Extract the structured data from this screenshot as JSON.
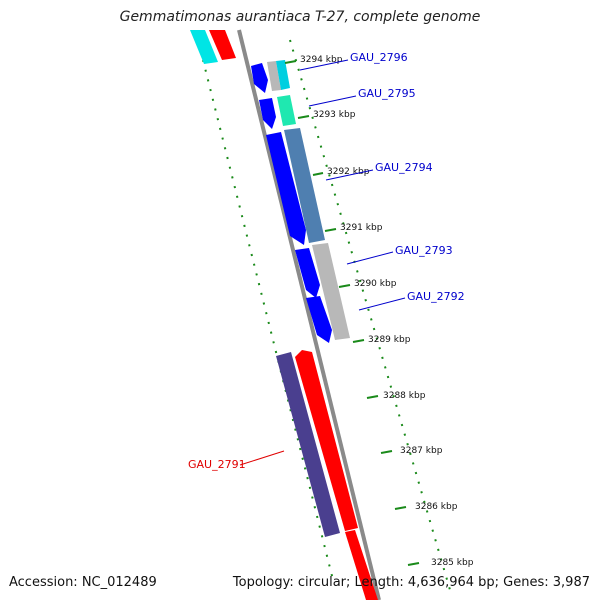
{
  "title": "Gemmatimonas aurantiaca T-27, complete genome",
  "footer": {
    "accession": "Accession: NC_012489",
    "summary": "Topology: circular; Length: 4,636,964 bp; Genes: 3,987"
  },
  "colors": {
    "backbone": "#8a8a8a",
    "tick": "#1a8a1a",
    "dot": "#1a8a1a",
    "forward_cds": "#0000ff",
    "label_blue": "#0000cc",
    "label_red": "#e00000",
    "red_gene": "#ff0000",
    "dark_gene": "#4a3f8f",
    "cyan_gene": "#00e5e5",
    "teal_gene": "#1fe8b0",
    "steel_gene": "#4f7fb0",
    "gray_gene": "#b8b8b8"
  },
  "ticks": [
    {
      "label": "3294 kbp"
    },
    {
      "label": "3293 kbp"
    },
    {
      "label": "3292 kbp"
    },
    {
      "label": "3291 kbp"
    },
    {
      "label": "3290 kbp"
    },
    {
      "label": "3289 kbp"
    },
    {
      "label": "3288 kbp"
    },
    {
      "label": "3287 kbp"
    },
    {
      "label": "3286 kbp"
    },
    {
      "label": "3285 kbp"
    }
  ],
  "gene_labels": [
    {
      "text": "GAU_2796",
      "color": "#0000cc"
    },
    {
      "text": "GAU_2795",
      "color": "#0000cc"
    },
    {
      "text": "GAU_2794",
      "color": "#0000cc"
    },
    {
      "text": "GAU_2793",
      "color": "#0000cc"
    },
    {
      "text": "GAU_2792",
      "color": "#0000cc"
    },
    {
      "text": "GAU_2791",
      "color": "#e00000"
    }
  ]
}
